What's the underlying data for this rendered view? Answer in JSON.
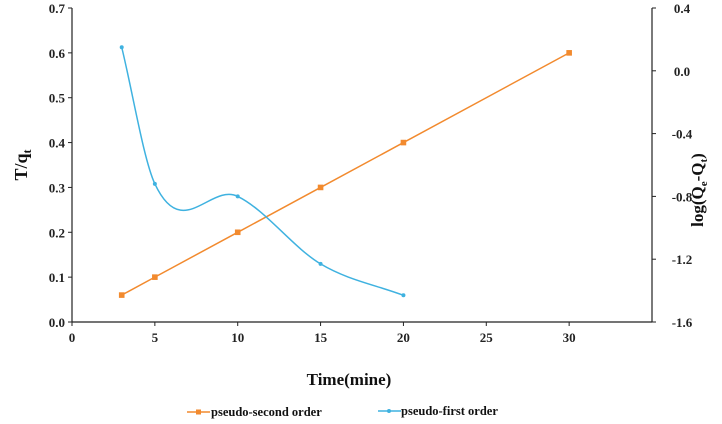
{
  "chart_data": {
    "type": "line",
    "xlabel": "Time(mine)",
    "ylabel": "T/q",
    "ylabel_sub": "t",
    "y2label": "log(Q",
    "y2label_sub1": "e",
    "y2label_mid": "-Q",
    "y2label_sub2": "t",
    "y2label_end": ")",
    "xlim": [
      0,
      35
    ],
    "ylim": [
      0,
      0.7
    ],
    "y2lim": [
      -1.6,
      0.4
    ],
    "x_ticks": [
      "0",
      "5",
      "10",
      "15",
      "20",
      "25",
      "30"
    ],
    "y_ticks": [
      "0.0",
      "0.1",
      "0.2",
      "0.3",
      "0.4",
      "0.5",
      "0.6",
      "0.7"
    ],
    "y2_ticks": [
      "0.4",
      "0.0",
      "-0.4",
      "-0.8",
      "-1.2",
      "-1.6"
    ],
    "grid": false,
    "legend_position": "bottom",
    "series": [
      {
        "name": "pseudo-second order",
        "axis": "left",
        "color": "#f28a2e",
        "marker": "square",
        "x": [
          3,
          5,
          10,
          15,
          20,
          30
        ],
        "y": [
          0.06,
          0.1,
          0.2,
          0.3,
          0.4,
          0.6
        ]
      },
      {
        "name": "pseudo-first order",
        "axis": "right",
        "color": "#3fb2e0",
        "marker": "dot",
        "smooth": true,
        "x": [
          3,
          5,
          10,
          15,
          20
        ],
        "y": [
          0.15,
          -0.72,
          -0.8,
          -1.23,
          -1.43
        ]
      }
    ]
  }
}
